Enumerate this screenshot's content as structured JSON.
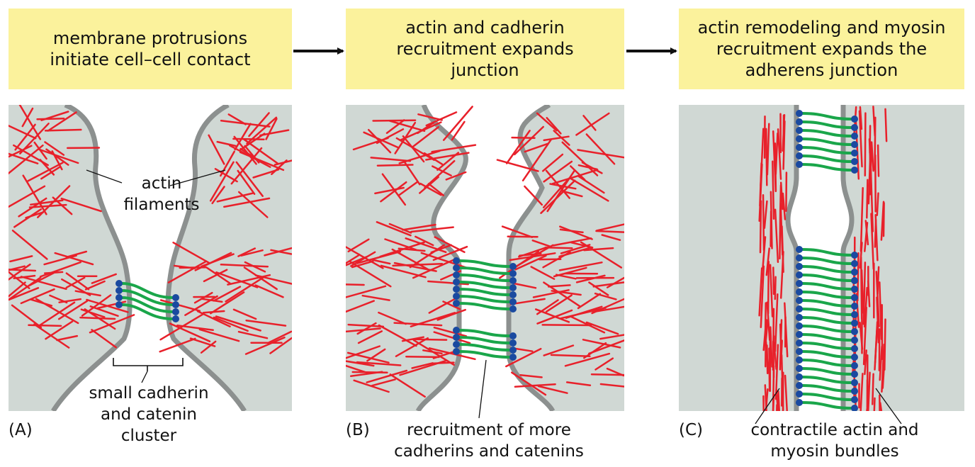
{
  "steps": [
    {
      "text": "membrane protrusions\ninitiate cell–cell contact"
    },
    {
      "text": "actin and cadherin\nrecruitment expands\njunction"
    },
    {
      "text": "actin remodeling and myosin\nrecruitment expands the\nadherens junction"
    }
  ],
  "panels": [
    {
      "letter": "(A)",
      "labels": {
        "filaments": "actin\nfilaments",
        "cluster": "small cadherin\nand catenin\ncluster"
      }
    },
    {
      "letter": "(B)",
      "labels": {
        "recruit": "recruitment of more\ncadherins and catenins"
      }
    },
    {
      "letter": "(C)",
      "labels": {
        "bundles": "contractile actin and\nmyosin bundles"
      }
    }
  ],
  "colors": {
    "header": "#fbf29c",
    "cell": "#d0d8d4",
    "membrane": "#8c908f",
    "actin": "#e8202a",
    "cadherin": "#1aa64a",
    "catenin": "#1a4aa0"
  }
}
